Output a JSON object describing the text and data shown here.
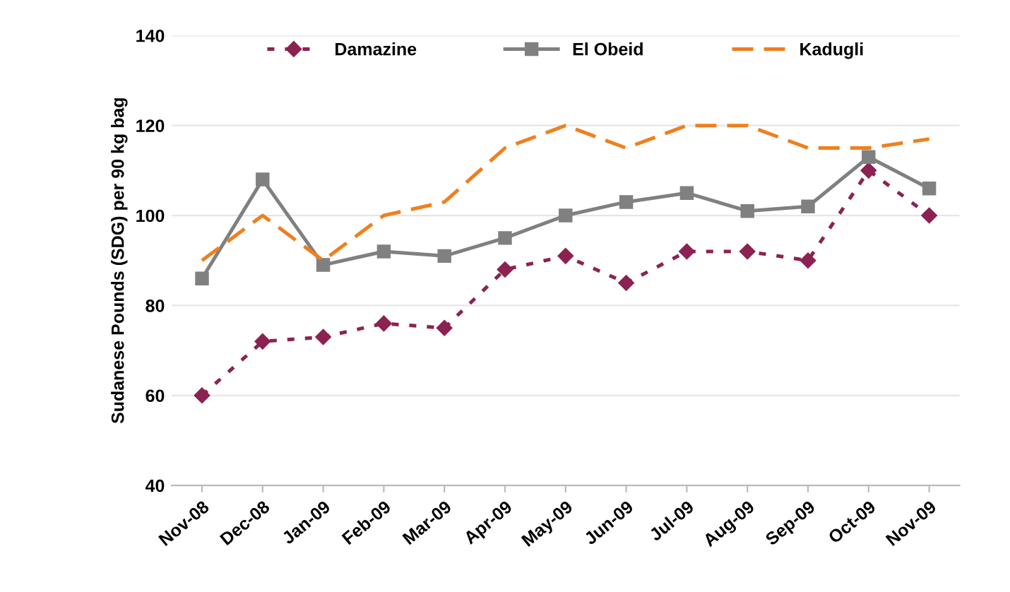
{
  "chart_data": {
    "type": "line",
    "ylabel": "Sudanese Pounds (SDG) per 90 kg bag",
    "categories": [
      "Nov-08",
      "Dec-08",
      "Jan-09",
      "Feb-09",
      "Mar-09",
      "Apr-09",
      "May-09",
      "Jun-09",
      "Jul-09",
      "Aug-09",
      "Sep-09",
      "Oct-09",
      "Nov-09"
    ],
    "series": [
      {
        "name": "Damazine",
        "color": "#8b2252",
        "marker": "diamond",
        "line_style": "dotted",
        "values": [
          60,
          72,
          73,
          76,
          75,
          88,
          91,
          85,
          92,
          92,
          90,
          110,
          100
        ]
      },
      {
        "name": "El Obeid",
        "color": "#808080",
        "marker": "square",
        "line_style": "solid",
        "values": [
          86,
          108,
          89,
          92,
          91,
          95,
          100,
          103,
          105,
          101,
          102,
          113,
          106
        ]
      },
      {
        "name": "Kadugli",
        "color": "#f07f1e",
        "marker": "none",
        "line_style": "dashed",
        "values": [
          90,
          100,
          90,
          100,
          103,
          115,
          120,
          115,
          120,
          120,
          115,
          115,
          117
        ]
      }
    ],
    "ylim": [
      40,
      140
    ],
    "yticks": [
      40,
      60,
      80,
      100,
      120,
      140
    ],
    "grid": "y",
    "legend": "top"
  }
}
